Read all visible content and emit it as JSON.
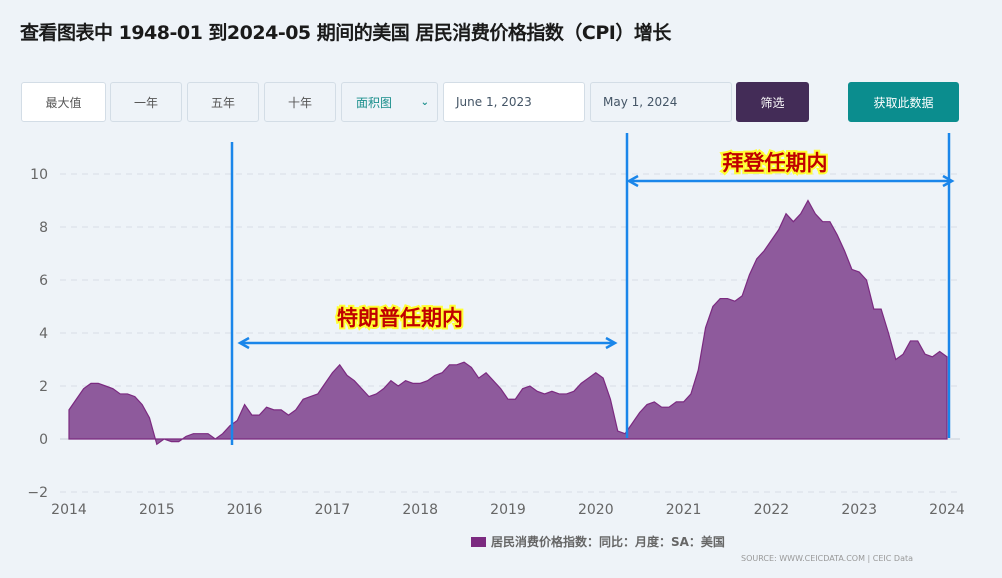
{
  "title": "查看图表中 1948-01 到2024-05 期间的美国 居民消费价格指数（CPI）增长",
  "toolbar": {
    "max": "最大值",
    "one_year": "一年",
    "five_year": "五年",
    "ten_year": "十年",
    "chart_type": "面积图",
    "start_date": "June 1, 2023",
    "end_date": "May 1, 2024",
    "filter": "筛选",
    "get_data": "获取此数据"
  },
  "chart_data": {
    "type": "area",
    "title": "",
    "xlabel": "",
    "ylabel": "",
    "xlim": [
      2014,
      2024
    ],
    "ylim": [
      -2,
      10
    ],
    "x_ticks": [
      "2014",
      "2015",
      "2016",
      "2017",
      "2018",
      "2019",
      "2020",
      "2021",
      "2022",
      "2023",
      "2024"
    ],
    "y_ticks": [
      "−2",
      "0",
      "2",
      "4",
      "6",
      "8",
      "10"
    ],
    "grid": "horizontal dashed",
    "legend": "bottom",
    "color": "#7b2a80",
    "series": [
      {
        "name": "居民消费价格指数：同比：月度：SA：美国",
        "start": "2014-01",
        "frequency": "monthly",
        "values": [
          1.1,
          1.5,
          1.9,
          2.1,
          2.1,
          2.0,
          1.9,
          1.7,
          1.7,
          1.6,
          1.3,
          0.8,
          -0.2,
          0.0,
          -0.1,
          -0.1,
          0.1,
          0.2,
          0.2,
          0.2,
          0.0,
          0.2,
          0.5,
          0.7,
          1.3,
          0.9,
          0.9,
          1.2,
          1.1,
          1.1,
          0.9,
          1.1,
          1.5,
          1.6,
          1.7,
          2.1,
          2.5,
          2.8,
          2.4,
          2.2,
          1.9,
          1.6,
          1.7,
          1.9,
          2.2,
          2.0,
          2.2,
          2.1,
          2.1,
          2.2,
          2.4,
          2.5,
          2.8,
          2.8,
          2.9,
          2.7,
          2.3,
          2.5,
          2.2,
          1.9,
          1.5,
          1.5,
          1.9,
          2.0,
          1.8,
          1.7,
          1.8,
          1.7,
          1.7,
          1.8,
          2.1,
          2.3,
          2.5,
          2.3,
          1.5,
          0.3,
          0.2,
          0.6,
          1.0,
          1.3,
          1.4,
          1.2,
          1.2,
          1.4,
          1.4,
          1.7,
          2.6,
          4.2,
          5.0,
          5.3,
          5.3,
          5.2,
          5.4,
          6.2,
          6.8,
          7.1,
          7.5,
          7.9,
          8.5,
          8.2,
          8.5,
          9.0,
          8.5,
          8.2,
          8.2,
          7.7,
          7.1,
          6.4,
          6.3,
          6.0,
          4.9,
          4.9,
          4.0,
          3.0,
          3.2,
          3.7,
          3.7,
          3.2,
          3.1,
          3.3,
          3.1
        ]
      }
    ],
    "annotations": [
      {
        "label": "特朗普任期内",
        "from": "2016-01",
        "to": "2020-05"
      },
      {
        "label": "拜登任期内",
        "from": "2020-05",
        "to": "2024-01"
      }
    ]
  },
  "source": "SOURCE: WWW.CEICDATA.COM | CEIC Data",
  "annotation_color": "#1a86ea"
}
